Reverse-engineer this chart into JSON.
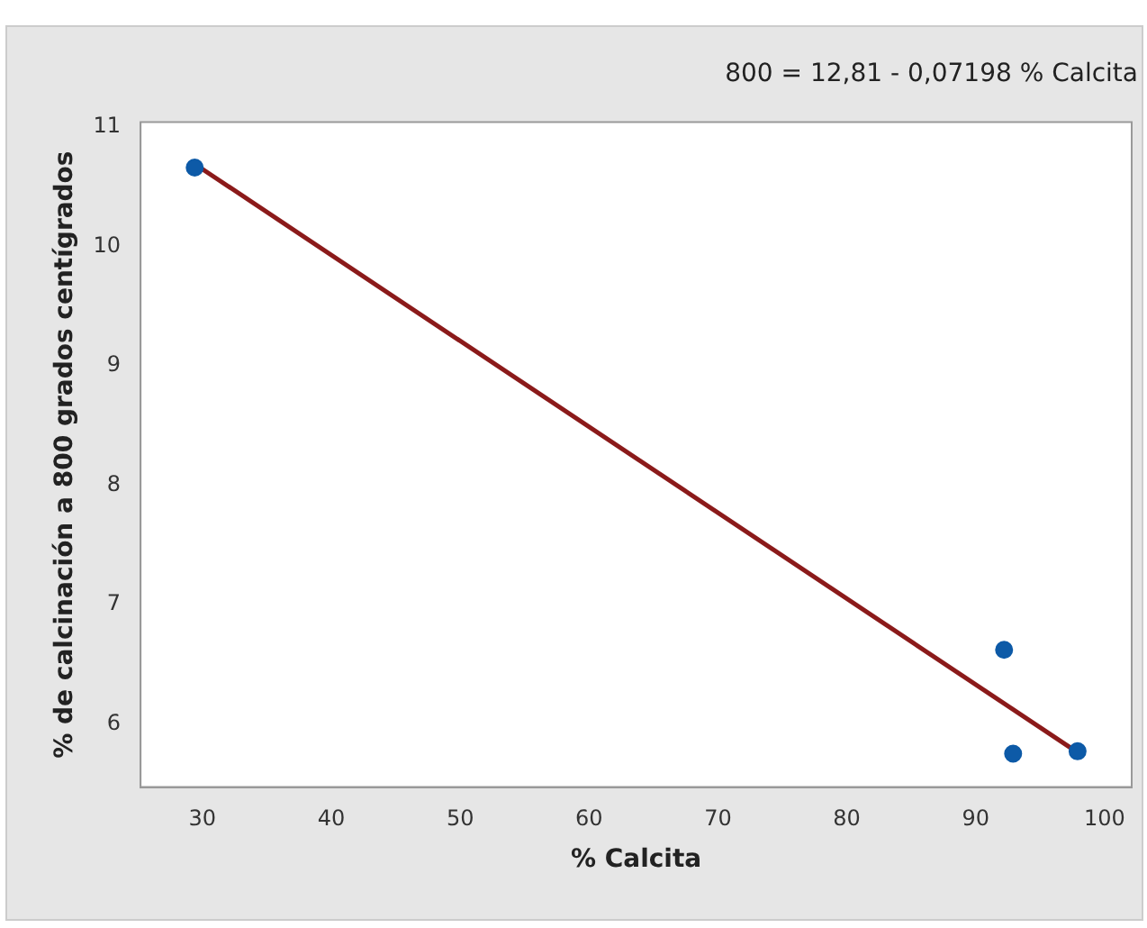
{
  "chart_data": {
    "type": "scatter",
    "title": "800 = 12,81 - 0,07198 % Calcita",
    "xlabel": "% Calcita",
    "ylabel": "% de calcinación a 800 grados centígrados",
    "series": [
      {
        "type": "scatter",
        "color": "#0d5aa7",
        "marker": "circle",
        "x": [
          29.4,
          92.2,
          92.9,
          97.9
        ],
        "values": [
          10.66,
          6.62,
          5.75,
          5.77
        ]
      },
      {
        "type": "line",
        "color": "#8b1a1a",
        "marker": "none",
        "x": [
          29.4,
          97.9
        ],
        "values": [
          10.69,
          5.76
        ]
      }
    ],
    "xlim": [
      25.2,
      102.1
    ],
    "xticks": [
      30,
      40,
      50,
      60,
      70,
      80,
      90,
      100
    ],
    "ylim": [
      5.47,
      11.04
    ],
    "yticks": [
      6,
      7,
      8,
      9,
      10,
      11
    ],
    "grid": false,
    "legend": false
  }
}
